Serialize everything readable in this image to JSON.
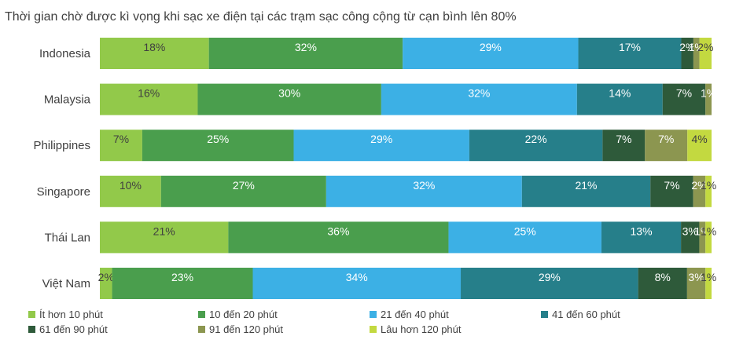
{
  "chart_data": {
    "type": "bar",
    "orientation": "horizontal",
    "stacked": true,
    "title": "Thời gian chờ được kì vọng khi sạc xe điện tại các trạm sạc công cộng từ cạn bình lên 80%",
    "categories": [
      "Indonesia",
      "Malaysia",
      "Philippines",
      "Singapore",
      "Thái Lan",
      "Việt Nam"
    ],
    "unit": "%",
    "xlim": [
      0,
      100
    ],
    "grid": false,
    "legend_position": "bottom",
    "series": [
      {
        "name": "Ít hơn 10 phút",
        "color": "#92c94a",
        "label_color": "#404040",
        "values": [
          18,
          16,
          7,
          10,
          21,
          2
        ]
      },
      {
        "name": "10 đến 20 phút",
        "color": "#4a9e4d",
        "label_color": "#ffffff",
        "values": [
          32,
          30,
          25,
          27,
          36,
          23
        ]
      },
      {
        "name": "21 đến 40 phút",
        "color": "#3cb0e5",
        "label_color": "#ffffff",
        "values": [
          29,
          32,
          29,
          32,
          25,
          34
        ]
      },
      {
        "name": "41 đến 60 phút",
        "color": "#267f8a",
        "label_color": "#ffffff",
        "values": [
          17,
          14,
          22,
          21,
          13,
          29
        ]
      },
      {
        "name": "61 đến 90 phút",
        "color": "#2e5a3a",
        "label_color": "#ffffff",
        "values": [
          2,
          7,
          7,
          7,
          3,
          8
        ]
      },
      {
        "name": "91 đến 120 phút",
        "color": "#8c9650",
        "label_color": "#ffffff",
        "values": [
          1,
          1,
          7,
          2,
          1,
          3
        ]
      },
      {
        "name": "Lâu hơn 120 phút",
        "color": "#c3d940",
        "label_color": "#404040",
        "values": [
          2,
          0,
          4,
          1,
          1,
          1
        ]
      }
    ]
  }
}
